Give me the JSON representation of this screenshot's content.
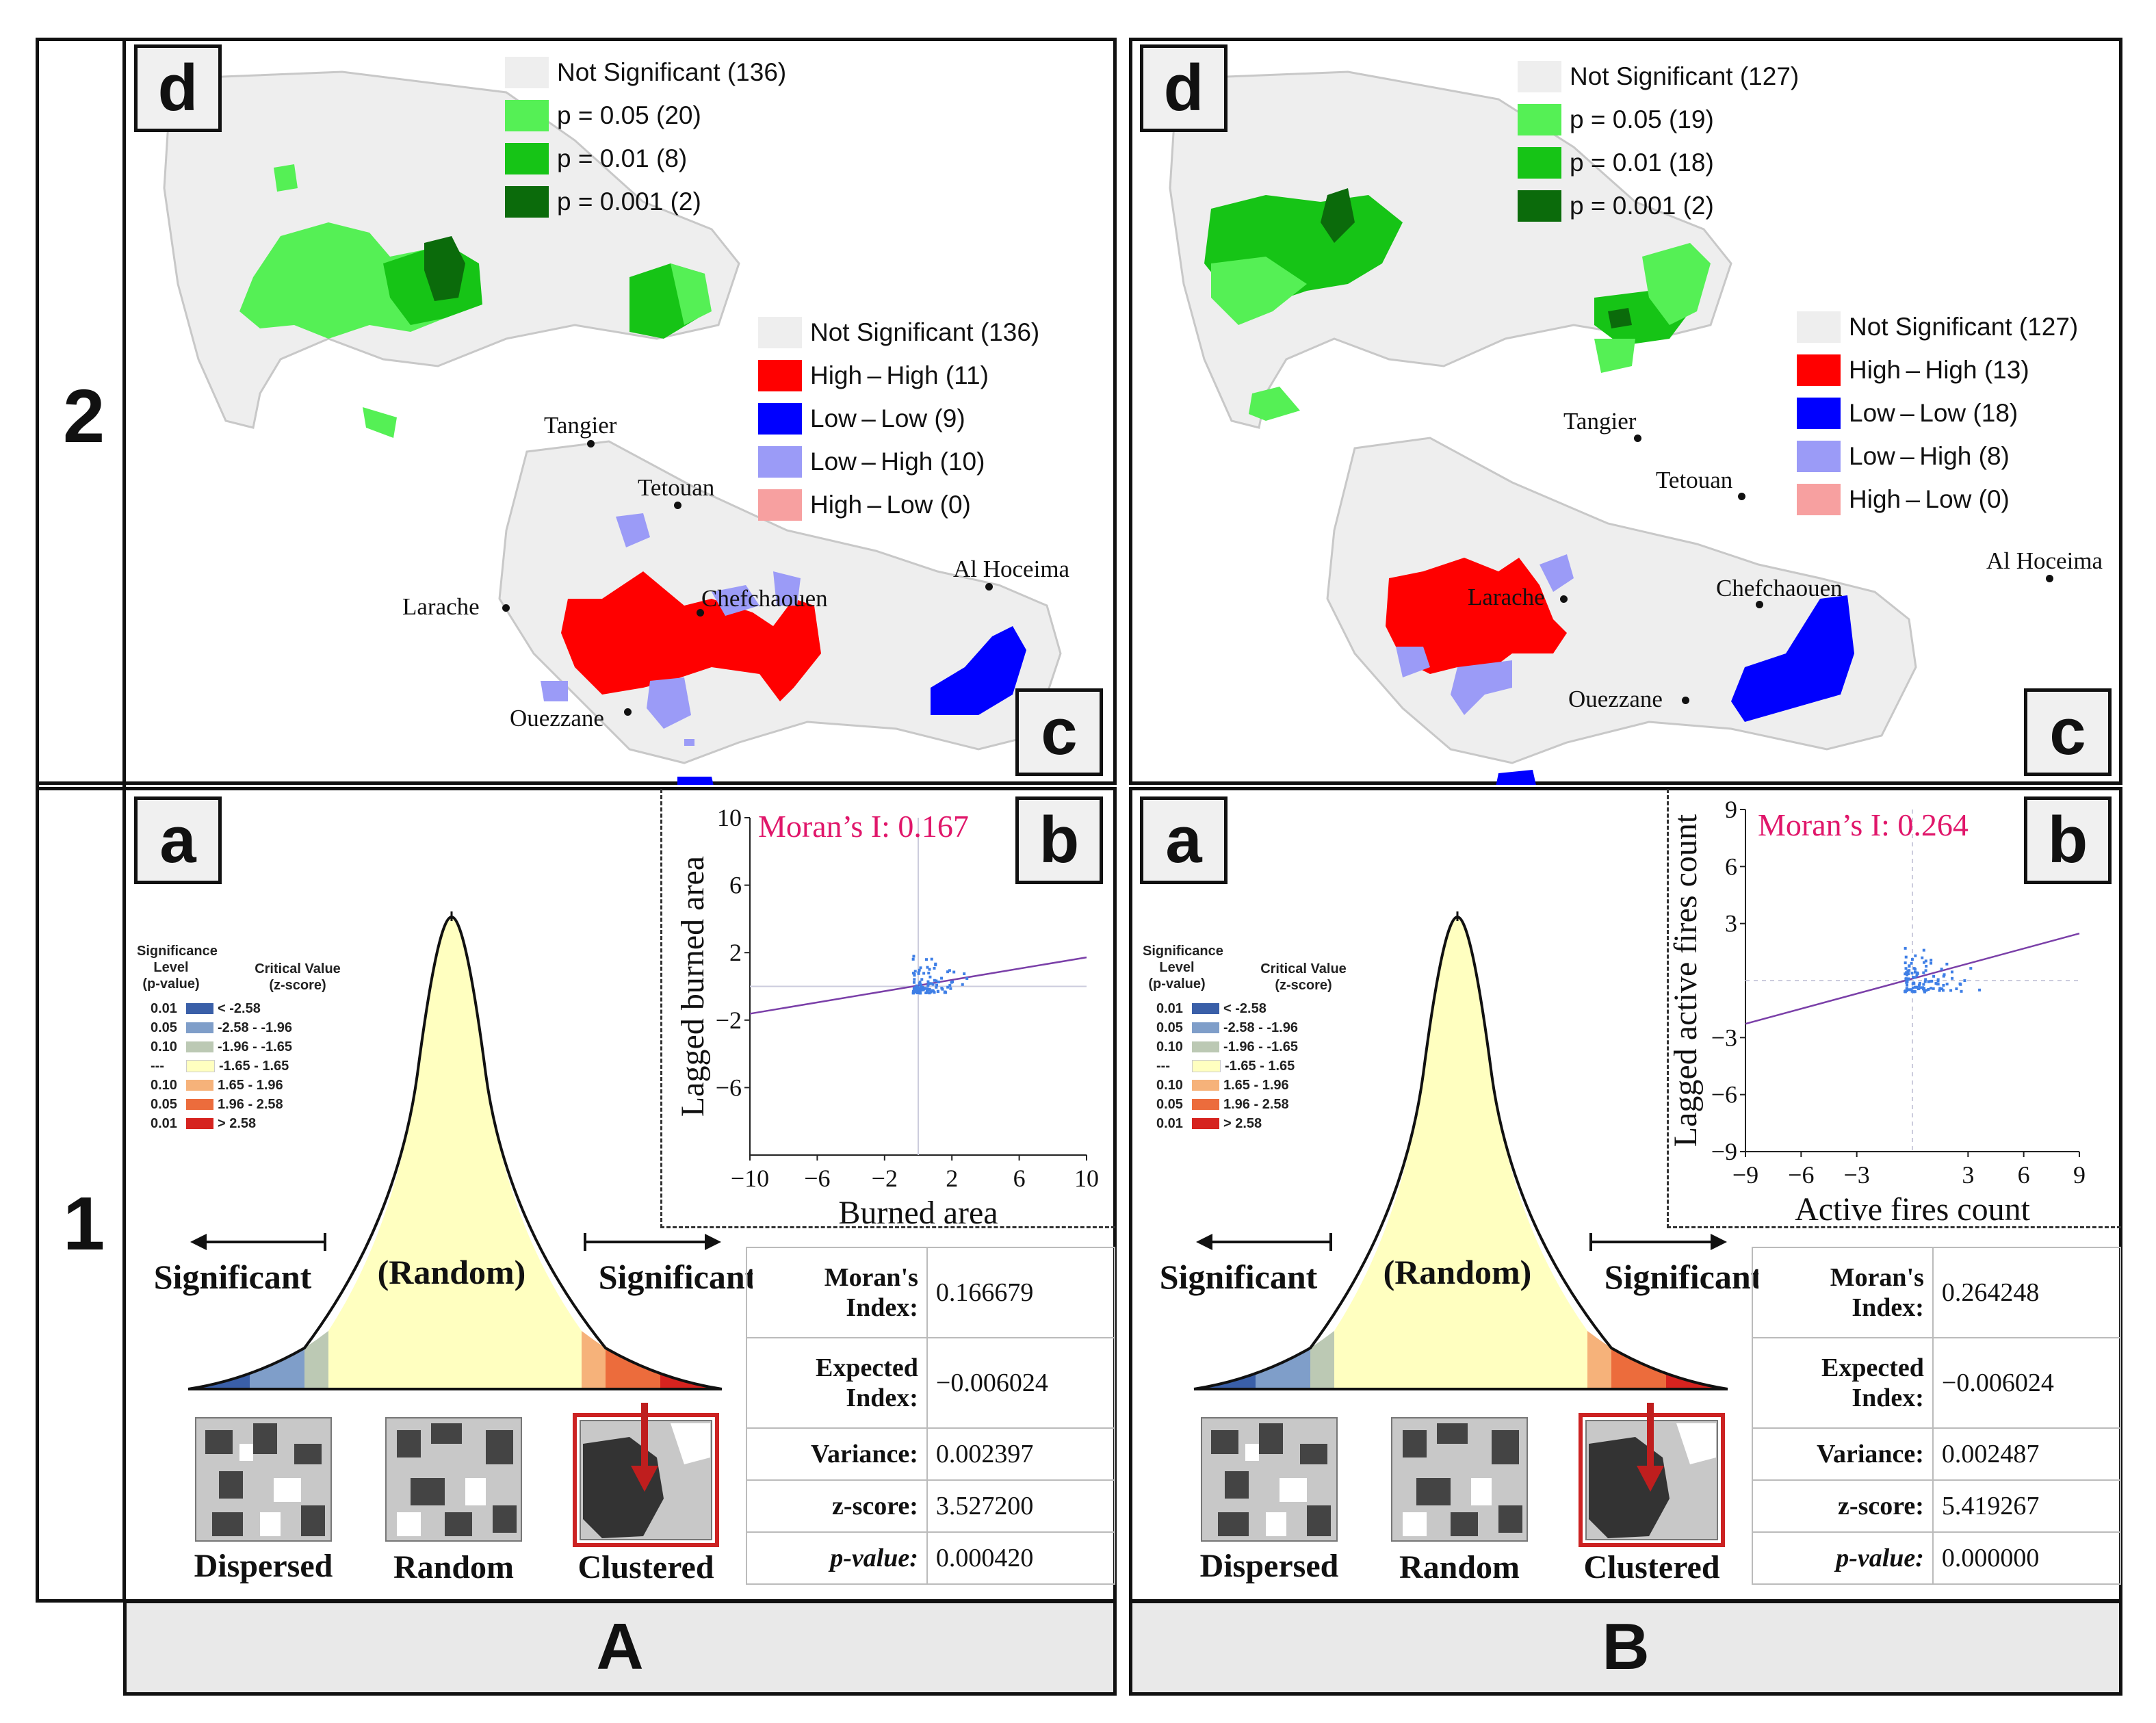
{
  "rows": {
    "top": "2",
    "bottom": "1"
  },
  "columns": {
    "left": "A",
    "right": "B"
  },
  "panel_letters": {
    "a": "a",
    "b": "b",
    "c": "c",
    "d": "d"
  },
  "left": {
    "gi_legend": [
      "Not Significant (136)",
      "p = 0.05 (20)",
      "p = 0.01 (8)",
      "p = 0.001 (2)"
    ],
    "lisa_legend": [
      "Not Significant (136)",
      "High – High (11)",
      "Low – Low (9)",
      "Low – High (10)",
      "High – Low (0)"
    ],
    "moran_label": "Moran’s I: 0.167",
    "xlabel": "Burned area",
    "ylabel": "Lagged burned area",
    "xticks": [
      "−10",
      "−6",
      "−2",
      "2",
      "6",
      "10"
    ],
    "yticks": [
      "10",
      "6",
      "2",
      "−2",
      "−6"
    ],
    "stats": [
      {
        "k1": "Moran's",
        "k2": "Index:",
        "v": "0.166679"
      },
      {
        "k1": "Expected",
        "k2": "Index:",
        "v": "−0.006024"
      },
      {
        "k1": "Variance:",
        "k2": "",
        "v": "0.002397"
      },
      {
        "k1": "z-score:",
        "k2": "",
        "v": "3.527200"
      },
      {
        "k1": "p-value:",
        "k2": "",
        "v": "0.000420"
      }
    ]
  },
  "right": {
    "gi_legend": [
      "Not Significant (127)",
      "p = 0.05 (19)",
      "p = 0.01 (18)",
      "p = 0.001 (2)"
    ],
    "lisa_legend": [
      "Not Significant (127)",
      "High – High (13)",
      "Low – Low (18)",
      "Low – High (8)",
      "High – Low (0)"
    ],
    "moran_label": "Moran’s I: 0.264",
    "xlabel": "Active fires count",
    "ylabel": "Lagged active fires count",
    "xticks": [
      "−9",
      "−6",
      "−3",
      "3",
      "6",
      "9"
    ],
    "yticks": [
      "9",
      "6",
      "3",
      "−3",
      "−6",
      "−9"
    ],
    "stats": [
      {
        "k1": "Moran's",
        "k2": "Index:",
        "v": "0.264248"
      },
      {
        "k1": "Expected",
        "k2": "Index:",
        "v": "−0.006024"
      },
      {
        "k1": "Variance:",
        "k2": "",
        "v": "0.002487"
      },
      {
        "k1": "z-score:",
        "k2": "",
        "v": "5.419267"
      },
      {
        "k1": "p-value:",
        "k2": "",
        "v": "0.000000"
      }
    ]
  },
  "cities": [
    "Tangier",
    "Tetouan",
    "Larache",
    "Chefchaouen",
    "Al Hoceima",
    "Ouezzane"
  ],
  "curve": {
    "legend_title_1": [
      "Significance",
      "Level",
      "(p-value)"
    ],
    "legend_title_2": [
      "Critical Value",
      "(z-score)"
    ],
    "legend_p": [
      "0.01",
      "0.05",
      "0.10",
      "---",
      "0.10",
      "0.05",
      "0.01"
    ],
    "legend_z": [
      "< -2.58",
      "-2.58 - -1.96",
      "-1.96 - -1.65",
      "-1.65 - 1.65",
      "1.65 - 1.96",
      "1.96 - 2.58",
      "> 2.58"
    ],
    "random_label": "(Random)",
    "significant_label": "Significant",
    "patterns": [
      "Dispersed",
      "Random",
      "Clustered"
    ]
  },
  "colors": {
    "gi": [
      "#eeeeee",
      "#55f055",
      "#16c416",
      "#0b6b0b"
    ],
    "lisa": [
      "#eeeeee",
      "#ff0000",
      "#0000ff",
      "#9b9bf7",
      "#f7a0a0"
    ],
    "zbands": [
      "#3a5fa8",
      "#7f9ec9",
      "#bcc9b4",
      "#ffffc0",
      "#f6b27a",
      "#ec6c3c",
      "#d6231f"
    ],
    "moran_text": "#e0166a",
    "fit_line": "#7a3fa8",
    "points": "#3f7fe6",
    "arrow": "#bf1e1e"
  }
}
